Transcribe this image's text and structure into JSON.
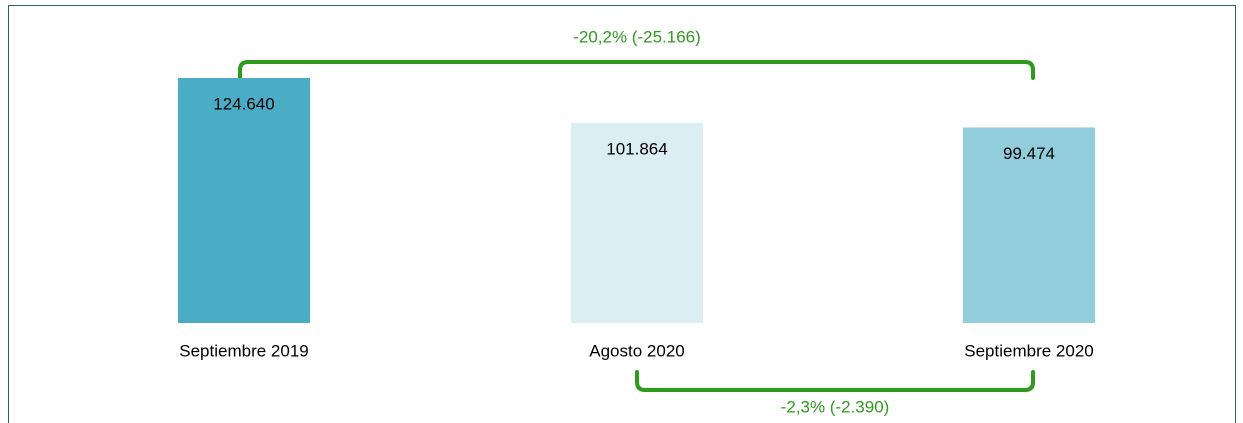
{
  "chart_data": {
    "type": "bar",
    "categories": [
      "Septiembre 2019",
      "Agosto 2020",
      "Septiembre 2020"
    ],
    "values": [
      124640,
      101864,
      99474
    ],
    "value_labels": [
      "124.640",
      "101.864",
      "99.474"
    ],
    "colors": [
      "#4bacc6",
      "#dbeef4",
      "#92cddc"
    ],
    "annotations": [
      "-20,2% (-25.166)",
      "-2,3% (-2.390)"
    ]
  }
}
